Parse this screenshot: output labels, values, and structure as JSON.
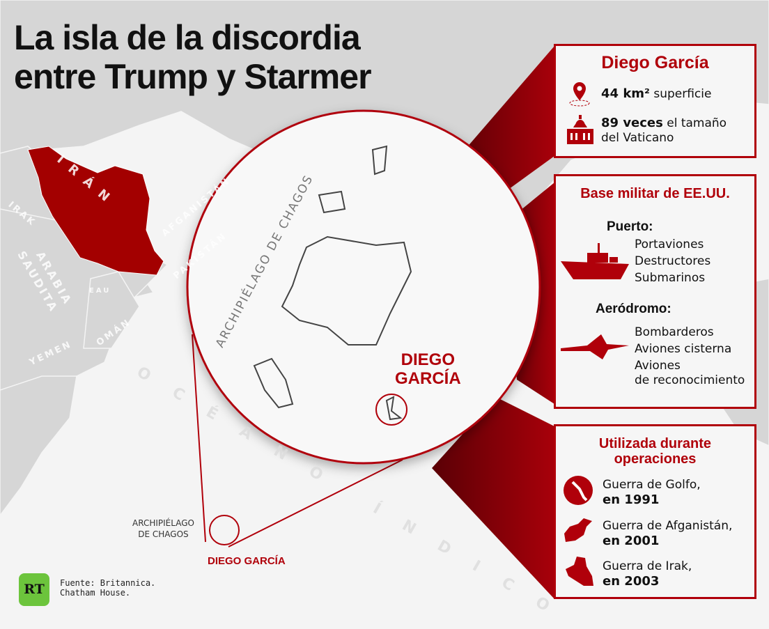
{
  "title": {
    "line1": "La isla de la discordia",
    "line2": "entre Trump y Starmer"
  },
  "map": {
    "country_labels": {
      "iran": "IRÁN",
      "irak": "IRAK",
      "arabia": "ARABIA",
      "saudita": "SAUDITA",
      "afganistan": "AFGANISTÁN",
      "pakistan": "PAKISTÁN",
      "eau": "EAU",
      "oman": "OMÁN",
      "yemen": "YEMEN"
    },
    "ocean_label": "OCÉANO ÍNDICO",
    "archipelago_label_line1": "ARCHIPIÉLAGO",
    "archipelago_label_line2": "DE CHAGOS",
    "diego_garcia_label": "DIEGO GARCÍA",
    "inset": {
      "archipelago_label": "ARCHIPIÉLAGO DE CHAGOS",
      "diego_line1": "DIEGO",
      "diego_line2": "GARCÍA"
    }
  },
  "colors": {
    "accent": "#b0000a",
    "iran": "#a30000",
    "land": "#d6d6d6",
    "ocean": "#f4f4f4"
  },
  "box1": {
    "title": "Diego García",
    "area_value": "44 km²",
    "area_label": "superficie",
    "vatican_value": "89 veces",
    "vatican_label1": "el tamaño",
    "vatican_label2": "del Vaticano",
    "icons": [
      "location-pin-icon",
      "vatican-basilica-icon"
    ]
  },
  "box2": {
    "title": "Base militar de EE.UU.",
    "port_title": "Puerto:",
    "port_items": [
      "Portaviones",
      "Destructores",
      "Submarinos"
    ],
    "airfield_title": "Aeródromo:",
    "airfield_items": [
      "Bombarderos",
      "Aviones cisterna",
      "Aviones",
      "de reconocimiento"
    ],
    "icons": [
      "warship-icon",
      "fighter-jet-icon"
    ]
  },
  "box3": {
    "title1": "Utilizada durante",
    "title2": "operaciones",
    "ops": [
      {
        "name": "Guerra de Golfo,",
        "year": "en 1991",
        "icon": "gulf-map-icon"
      },
      {
        "name": "Guerra de Afganistán,",
        "year": "en 2001",
        "icon": "afghanistan-map-icon"
      },
      {
        "name": "Guerra de Irak,",
        "year": "en 2003",
        "icon": "iraq-map-icon"
      }
    ]
  },
  "footer": {
    "logo": "RT",
    "source1": "Fuente: Britannica.",
    "source2": "Chatham House."
  }
}
